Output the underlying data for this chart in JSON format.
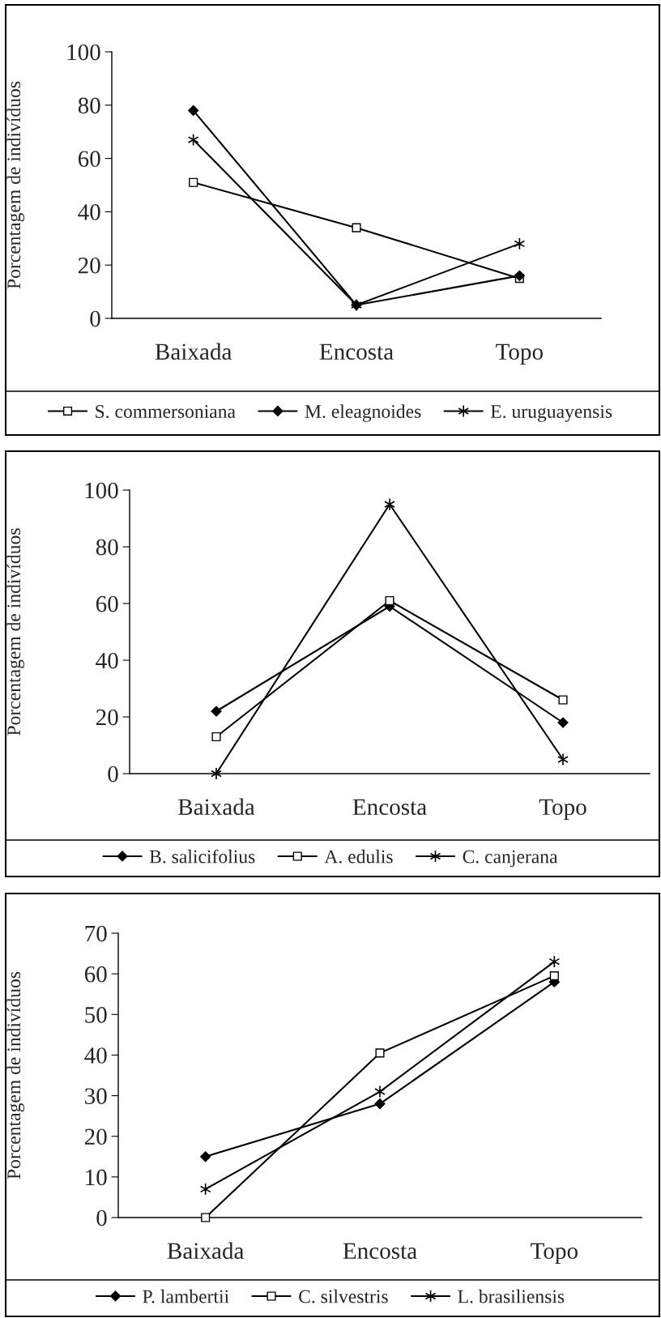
{
  "chart_data": [
    {
      "type": "line",
      "ylabel": "Porcentagem de indivíduos",
      "categories": [
        "Baixada",
        "Encosta",
        "Topo"
      ],
      "ylim": [
        0,
        100
      ],
      "yticks": [
        0,
        20,
        40,
        60,
        80,
        100
      ],
      "legend": "bottom",
      "grid": false,
      "series": [
        {
          "name": "S. commersoniana",
          "color": "#000000",
          "marker": "square",
          "values": [
            51,
            34,
            15
          ]
        },
        {
          "name": "M. eleagnoides",
          "color": "#000000",
          "marker": "diamond",
          "values": [
            78,
            5,
            16
          ]
        },
        {
          "name": "E. uruguayensis",
          "color": "#000000",
          "marker": "cross",
          "values": [
            67,
            5,
            28
          ]
        }
      ]
    },
    {
      "type": "line",
      "ylabel": "Porcentagem de indivíduos",
      "categories": [
        "Baixada",
        "Encosta",
        "Topo"
      ],
      "ylim": [
        0,
        100
      ],
      "yticks": [
        0,
        20,
        40,
        60,
        80,
        100
      ],
      "legend": "bottom",
      "grid": false,
      "series": [
        {
          "name": "B. salicifolius",
          "color": "#000000",
          "marker": "diamond",
          "values": [
            22,
            59,
            18
          ]
        },
        {
          "name": "A. edulis",
          "color": "#000000",
          "marker": "square",
          "values": [
            13,
            61,
            26
          ]
        },
        {
          "name": "C. canjerana",
          "color": "#000000",
          "marker": "cross",
          "values": [
            0,
            95,
            5
          ]
        }
      ]
    },
    {
      "type": "line",
      "ylabel": "Porcentagem de indivíduos",
      "categories": [
        "Baixada",
        "Encosta",
        "Topo"
      ],
      "ylim": [
        0,
        70
      ],
      "yticks": [
        0,
        10,
        20,
        30,
        40,
        50,
        60,
        70
      ],
      "legend": "bottom",
      "grid": false,
      "series": [
        {
          "name": "P. lambertii",
          "color": "#000000",
          "marker": "diamond",
          "values": [
            15,
            28,
            58
          ]
        },
        {
          "name": "C. silvestris",
          "color": "#000000",
          "marker": "square",
          "values": [
            0,
            40.5,
            59.5
          ]
        },
        {
          "name": "L. brasiliensis",
          "color": "#000000",
          "marker": "cross",
          "values": [
            7,
            31,
            63
          ]
        }
      ]
    }
  ]
}
